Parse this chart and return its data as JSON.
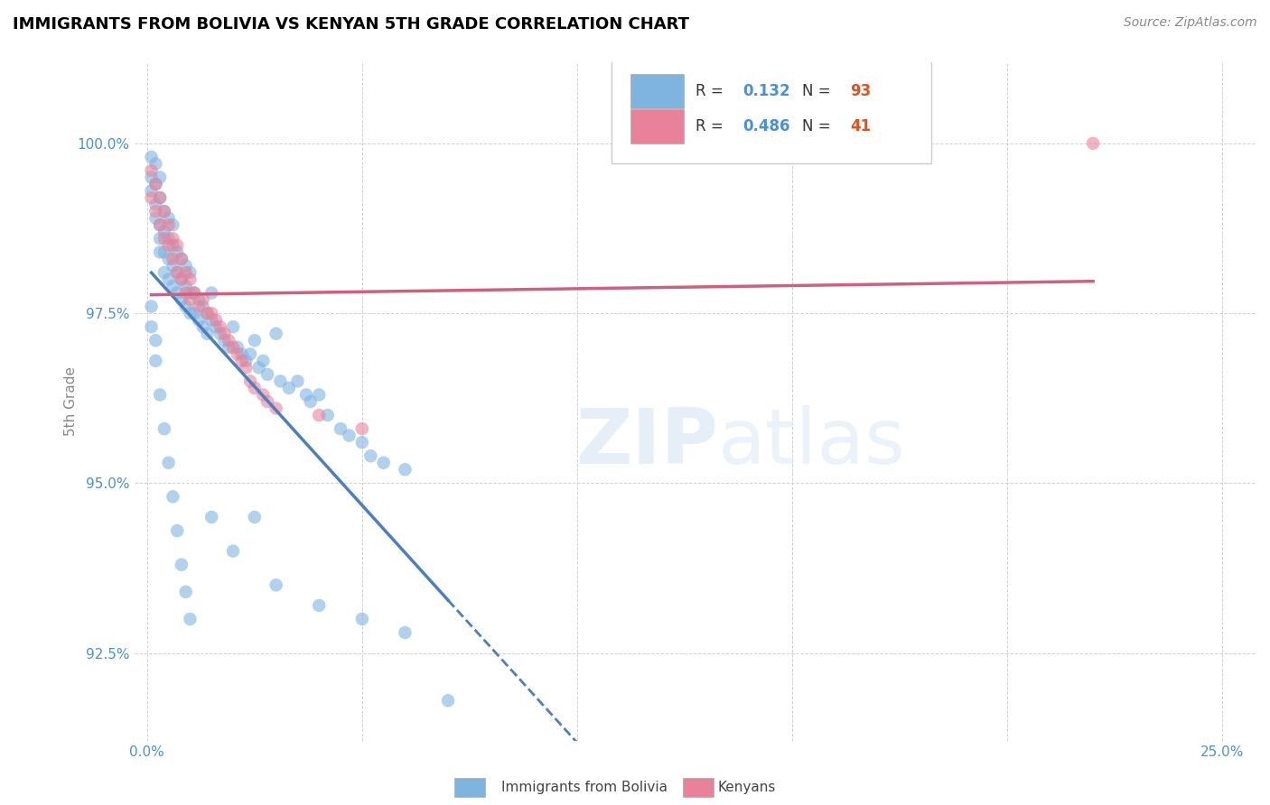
{
  "title": "IMMIGRANTS FROM BOLIVIA VS KENYAN 5TH GRADE CORRELATION CHART",
  "source": "Source: ZipAtlas.com",
  "ylabel": "5th Grade",
  "ylabel_ticks": [
    "92.5%",
    "95.0%",
    "97.5%",
    "100.0%"
  ],
  "ylim": [
    91.2,
    101.2
  ],
  "xlim": [
    -0.003,
    0.258
  ],
  "y_tick_vals": [
    92.5,
    95.0,
    97.5,
    100.0
  ],
  "x_tick_vals": [
    0.0,
    0.05,
    0.1,
    0.15,
    0.2,
    0.25
  ],
  "legend_blue_R": "0.132",
  "legend_blue_N": "93",
  "legend_pink_R": "0.486",
  "legend_pink_N": "41",
  "legend_label_blue": "Immigrants from Bolivia",
  "legend_label_pink": "Kenyans",
  "blue_color": "#7fb3e0",
  "pink_color": "#e8829a",
  "blue_line_color": "#4a7fc0",
  "pink_line_color": "#d06080",
  "blue_scatter_x": [
    0.001,
    0.001,
    0.001,
    0.002,
    0.002,
    0.002,
    0.002,
    0.003,
    0.003,
    0.003,
    0.003,
    0.003,
    0.004,
    0.004,
    0.004,
    0.004,
    0.005,
    0.005,
    0.005,
    0.005,
    0.006,
    0.006,
    0.006,
    0.006,
    0.007,
    0.007,
    0.007,
    0.008,
    0.008,
    0.008,
    0.009,
    0.009,
    0.009,
    0.01,
    0.01,
    0.01,
    0.011,
    0.011,
    0.012,
    0.012,
    0.013,
    0.013,
    0.014,
    0.014,
    0.015,
    0.015,
    0.016,
    0.017,
    0.018,
    0.019,
    0.02,
    0.021,
    0.022,
    0.023,
    0.024,
    0.025,
    0.026,
    0.027,
    0.028,
    0.03,
    0.031,
    0.033,
    0.035,
    0.037,
    0.038,
    0.04,
    0.042,
    0.045,
    0.047,
    0.05,
    0.052,
    0.055,
    0.06,
    0.001,
    0.002,
    0.003,
    0.004,
    0.005,
    0.006,
    0.007,
    0.008,
    0.009,
    0.01,
    0.015,
    0.02,
    0.025,
    0.03,
    0.04,
    0.05,
    0.06,
    0.001,
    0.002,
    0.07
  ],
  "blue_scatter_y": [
    99.8,
    99.5,
    99.3,
    99.7,
    99.4,
    99.1,
    98.9,
    99.5,
    99.2,
    98.8,
    98.6,
    98.4,
    99.0,
    98.7,
    98.4,
    98.1,
    98.9,
    98.6,
    98.3,
    98.0,
    98.8,
    98.5,
    98.2,
    97.9,
    98.4,
    98.1,
    97.8,
    98.3,
    98.0,
    97.7,
    98.2,
    97.9,
    97.6,
    98.1,
    97.8,
    97.5,
    97.8,
    97.5,
    97.7,
    97.4,
    97.6,
    97.3,
    97.5,
    97.2,
    97.8,
    97.4,
    97.3,
    97.2,
    97.1,
    97.0,
    97.3,
    97.0,
    96.9,
    96.8,
    96.9,
    97.1,
    96.7,
    96.8,
    96.6,
    97.2,
    96.5,
    96.4,
    96.5,
    96.3,
    96.2,
    96.3,
    96.0,
    95.8,
    95.7,
    95.6,
    95.4,
    95.3,
    95.2,
    97.3,
    96.8,
    96.3,
    95.8,
    95.3,
    94.8,
    94.3,
    93.8,
    93.4,
    93.0,
    94.5,
    94.0,
    94.5,
    93.5,
    93.2,
    93.0,
    92.8,
    97.6,
    97.1,
    91.8
  ],
  "pink_scatter_x": [
    0.001,
    0.001,
    0.002,
    0.002,
    0.003,
    0.003,
    0.004,
    0.004,
    0.005,
    0.005,
    0.006,
    0.006,
    0.007,
    0.007,
    0.008,
    0.008,
    0.009,
    0.009,
    0.01,
    0.01,
    0.011,
    0.012,
    0.013,
    0.014,
    0.015,
    0.016,
    0.017,
    0.018,
    0.019,
    0.02,
    0.021,
    0.022,
    0.023,
    0.024,
    0.025,
    0.027,
    0.028,
    0.03,
    0.04,
    0.05,
    0.22
  ],
  "pink_scatter_y": [
    99.6,
    99.2,
    99.4,
    99.0,
    99.2,
    98.8,
    99.0,
    98.6,
    98.8,
    98.5,
    98.6,
    98.3,
    98.5,
    98.1,
    98.3,
    98.0,
    98.1,
    97.8,
    98.0,
    97.7,
    97.8,
    97.6,
    97.7,
    97.5,
    97.5,
    97.4,
    97.3,
    97.2,
    97.1,
    97.0,
    96.9,
    96.8,
    96.7,
    96.5,
    96.4,
    96.3,
    96.2,
    96.1,
    96.0,
    95.8,
    100.0
  ]
}
